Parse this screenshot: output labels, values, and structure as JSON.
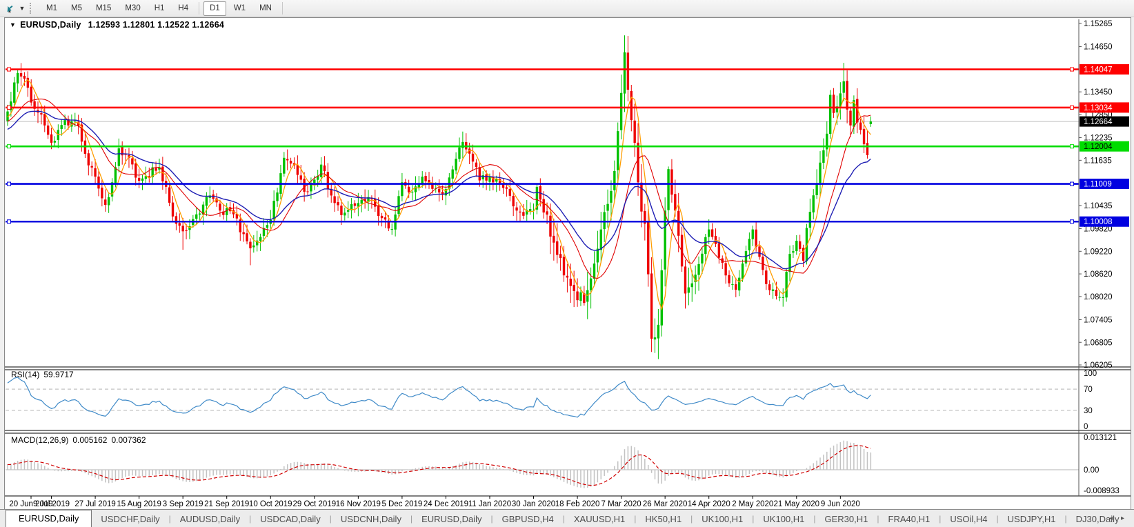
{
  "toolbar": {
    "periods": [
      "M1",
      "M5",
      "M15",
      "M30",
      "H1",
      "H4",
      "D1",
      "W1",
      "MN"
    ],
    "active_period": "D1",
    "group_break_after": "H4"
  },
  "chart": {
    "title": {
      "symbol": "EURUSD,Daily",
      "ohlc": "1.12593 1.12801 1.12522 1.12664"
    }
  },
  "indicators": {
    "rsi": {
      "label": "RSI(14)",
      "value": "59.9717",
      "levels": [
        100,
        70,
        30,
        0
      ],
      "dashed_levels": [
        70,
        30
      ]
    },
    "macd": {
      "label": "MACD(12,26,9)",
      "value1": "0.005162",
      "value2": "0.007362",
      "axis_labels": [
        "0.013121",
        "0.00",
        "-0.008933"
      ],
      "axis_values": [
        0.013121,
        0.0,
        -0.008933
      ]
    }
  },
  "tabs": {
    "items": [
      "EURUSD,Daily",
      "USDCHF,Daily",
      "AUDUSD,Daily",
      "USDCAD,Daily",
      "USDCNH,Daily",
      "EURUSD,Daily",
      "GBPUSD,H4",
      "XAUUSD,H1",
      "HK50,H1",
      "UK100,H1",
      "UK100,H1",
      "GER30,H1",
      "FRA40,H1",
      "USOil,H4",
      "USDJPY,H1",
      "DJ30,Daily"
    ],
    "active_index": 0,
    "scroll_left": "◂",
    "scroll_right": "▸"
  },
  "colors": {
    "up": "#00c000",
    "down": "#ee0000",
    "ma_fast": "#ff9d00",
    "ma_mid": "#e00000",
    "ma_slow": "#1e1eb4",
    "rsi": "#3f8ac8",
    "rsi_dash": "#b4b4b4",
    "macd_hist": "#c2c2c2",
    "macd_signal": "#d00000",
    "price_line": "#c0c0c0",
    "current_badge_bg": "#000000"
  },
  "chart_data": {
    "type": "candlestick",
    "symbol": "EURUSD",
    "timeframe": "Daily",
    "bars": 257,
    "x_labels": [
      "20 Jun 2019",
      "9 Jul 2019",
      "27 Jul 2019",
      "15 Aug 2019",
      "3 Sep 2019",
      "21 Sep 2019",
      "10 Oct 2019",
      "29 Oct 2019",
      "16 Nov 2019",
      "5 Dec 2019",
      "24 Dec 2019",
      "11 Jan 2020",
      "30 Jan 2020",
      "18 Feb 2020",
      "7 Mar 2020",
      "26 Mar 2020",
      "14 Apr 2020",
      "2 May 2020",
      "21 May 2020",
      "9 Jun 2020"
    ],
    "x_label_bar_step": 13,
    "price_axis_ticks": [
      1.15265,
      1.1465,
      1.1345,
      1.1285,
      1.12235,
      1.11635,
      1.10435,
      1.0982,
      1.0922,
      1.0862,
      1.0802,
      1.07405,
      1.06805,
      1.06205
    ],
    "ylim": [
      1.06205,
      1.15265
    ],
    "current_price": 1.12664,
    "last_bar": {
      "open": 1.12593,
      "high": 1.12801,
      "low": 1.12522,
      "close": 1.12664
    },
    "levels": [
      {
        "price": 1.14047,
        "color": "#ff0000",
        "text_color": "#ffffff",
        "label": "1.14047"
      },
      {
        "price": 1.13034,
        "color": "#ff0000",
        "text_color": "#ffffff",
        "label": "1.13034"
      },
      {
        "price": 1.12004,
        "color": "#00dc00",
        "text_color": "#000000",
        "label": "1.12004"
      },
      {
        "price": 1.11009,
        "color": "#0000e0",
        "text_color": "#ffffff",
        "label": "1.11009"
      },
      {
        "price": 1.10008,
        "color": "#0000e0",
        "text_color": "#ffffff",
        "label": "1.10008"
      }
    ],
    "anchors_note": "piecewise close path read from chart: [bar_index, close, high_override_or_0, low_override_or_0]",
    "anchors": [
      [
        0,
        1.1293,
        0,
        0
      ],
      [
        2,
        1.137,
        0,
        0
      ],
      [
        3,
        1.1395,
        1.1403,
        0
      ],
      [
        5,
        1.138,
        0,
        0
      ],
      [
        8,
        1.13,
        0,
        0
      ],
      [
        10,
        1.1285,
        0,
        0
      ],
      [
        13,
        1.121,
        0,
        1.1193
      ],
      [
        17,
        1.127,
        0,
        0
      ],
      [
        21,
        1.1255,
        0,
        0
      ],
      [
        24,
        1.115,
        0,
        0
      ],
      [
        26,
        1.112,
        0,
        0
      ],
      [
        29,
        1.1045,
        0,
        1.1027
      ],
      [
        31,
        1.1105,
        0,
        0
      ],
      [
        33,
        1.1195,
        0,
        0
      ],
      [
        36,
        1.117,
        0,
        0
      ],
      [
        39,
        1.1109,
        0,
        0
      ],
      [
        45,
        1.1145,
        0,
        0
      ],
      [
        50,
        1.0995,
        0,
        0
      ],
      [
        52,
        1.0975,
        0,
        1.0926
      ],
      [
        56,
        1.102,
        0,
        0
      ],
      [
        60,
        1.107,
        0,
        0
      ],
      [
        63,
        1.103,
        0,
        0
      ],
      [
        67,
        1.102,
        0,
        0
      ],
      [
        72,
        1.093,
        0,
        1.0885
      ],
      [
        75,
        1.096,
        0,
        0
      ],
      [
        78,
        1.1005,
        0,
        0
      ],
      [
        82,
        1.117,
        0,
        0
      ],
      [
        85,
        1.115,
        0,
        0
      ],
      [
        88,
        1.108,
        0,
        0
      ],
      [
        91,
        1.1112,
        0,
        0
      ],
      [
        93,
        1.1152,
        0,
        0
      ],
      [
        96,
        1.107,
        0,
        0
      ],
      [
        99,
        1.1018,
        0,
        0
      ],
      [
        104,
        1.105,
        0,
        0
      ],
      [
        108,
        1.106,
        0,
        0
      ],
      [
        111,
        1.101,
        0,
        0
      ],
      [
        114,
        1.0981,
        0,
        0
      ],
      [
        117,
        1.1105,
        0,
        0
      ],
      [
        120,
        1.108,
        0,
        0
      ],
      [
        123,
        1.112,
        0,
        0
      ],
      [
        128,
        1.1078,
        0,
        0
      ],
      [
        130,
        1.1087,
        0,
        0
      ],
      [
        135,
        1.1212,
        0,
        0
      ],
      [
        138,
        1.116,
        0,
        0
      ],
      [
        140,
        1.111,
        0,
        0
      ],
      [
        143,
        1.112,
        0,
        0
      ],
      [
        147,
        1.109,
        0,
        0
      ],
      [
        152,
        1.1025,
        0,
        0
      ],
      [
        156,
        1.1032,
        0,
        0
      ],
      [
        157,
        1.1093,
        0,
        0
      ],
      [
        162,
        1.0945,
        0,
        0
      ],
      [
        167,
        1.083,
        0,
        0
      ],
      [
        171,
        1.0785,
        0,
        1.0778
      ],
      [
        173,
        1.085,
        0,
        0
      ],
      [
        177,
        1.1026,
        0,
        0
      ],
      [
        180,
        1.1135,
        0,
        0
      ],
      [
        183,
        1.145,
        1.1495,
        0
      ],
      [
        185,
        1.127,
        0,
        0
      ],
      [
        187,
        1.1105,
        0,
        0
      ],
      [
        189,
        1.0995,
        0,
        0
      ],
      [
        191,
        1.069,
        0,
        1.0655
      ],
      [
        193,
        1.0727,
        0,
        1.0636
      ],
      [
        195,
        1.103,
        0,
        0
      ],
      [
        196,
        1.114,
        1.1147,
        0
      ],
      [
        198,
        1.103,
        0,
        0
      ],
      [
        201,
        1.081,
        0,
        1.077
      ],
      [
        204,
        1.086,
        0,
        0
      ],
      [
        208,
        1.098,
        0,
        0
      ],
      [
        213,
        1.0858,
        0,
        0
      ],
      [
        216,
        1.082,
        0,
        0
      ],
      [
        220,
        1.0955,
        1.0972,
        0
      ],
      [
        221,
        1.098,
        0,
        0
      ],
      [
        225,
        1.0835,
        0,
        0
      ],
      [
        230,
        1.08,
        0,
        1.0775
      ],
      [
        232,
        1.0915,
        0,
        0
      ],
      [
        234,
        1.095,
        0,
        0
      ],
      [
        236,
        1.0897,
        0,
        0
      ],
      [
        237,
        1.0984,
        0,
        0
      ],
      [
        240,
        1.1101,
        0,
        0
      ],
      [
        243,
        1.1234,
        0,
        0
      ],
      [
        244,
        1.1337,
        0,
        0
      ],
      [
        245,
        1.1289,
        0,
        0
      ],
      [
        247,
        1.1341,
        0,
        0
      ],
      [
        248,
        1.1373,
        1.1422,
        0
      ],
      [
        249,
        1.1298,
        0,
        0
      ],
      [
        250,
        1.1256,
        0,
        0
      ],
      [
        251,
        1.1323,
        0,
        0
      ],
      [
        252,
        1.1264,
        0,
        0
      ],
      [
        253,
        1.1244,
        0,
        0
      ],
      [
        254,
        1.1206,
        0,
        0
      ],
      [
        255,
        1.1177,
        0,
        1.1168
      ],
      [
        256,
        1.12664,
        1.12801,
        1.12522
      ]
    ],
    "moving_averages": [
      {
        "name": "fast",
        "period": 5,
        "type": "sma"
      },
      {
        "name": "mid",
        "period": 13,
        "type": "sma"
      },
      {
        "name": "slow",
        "period": 26,
        "type": "ema"
      }
    ]
  }
}
